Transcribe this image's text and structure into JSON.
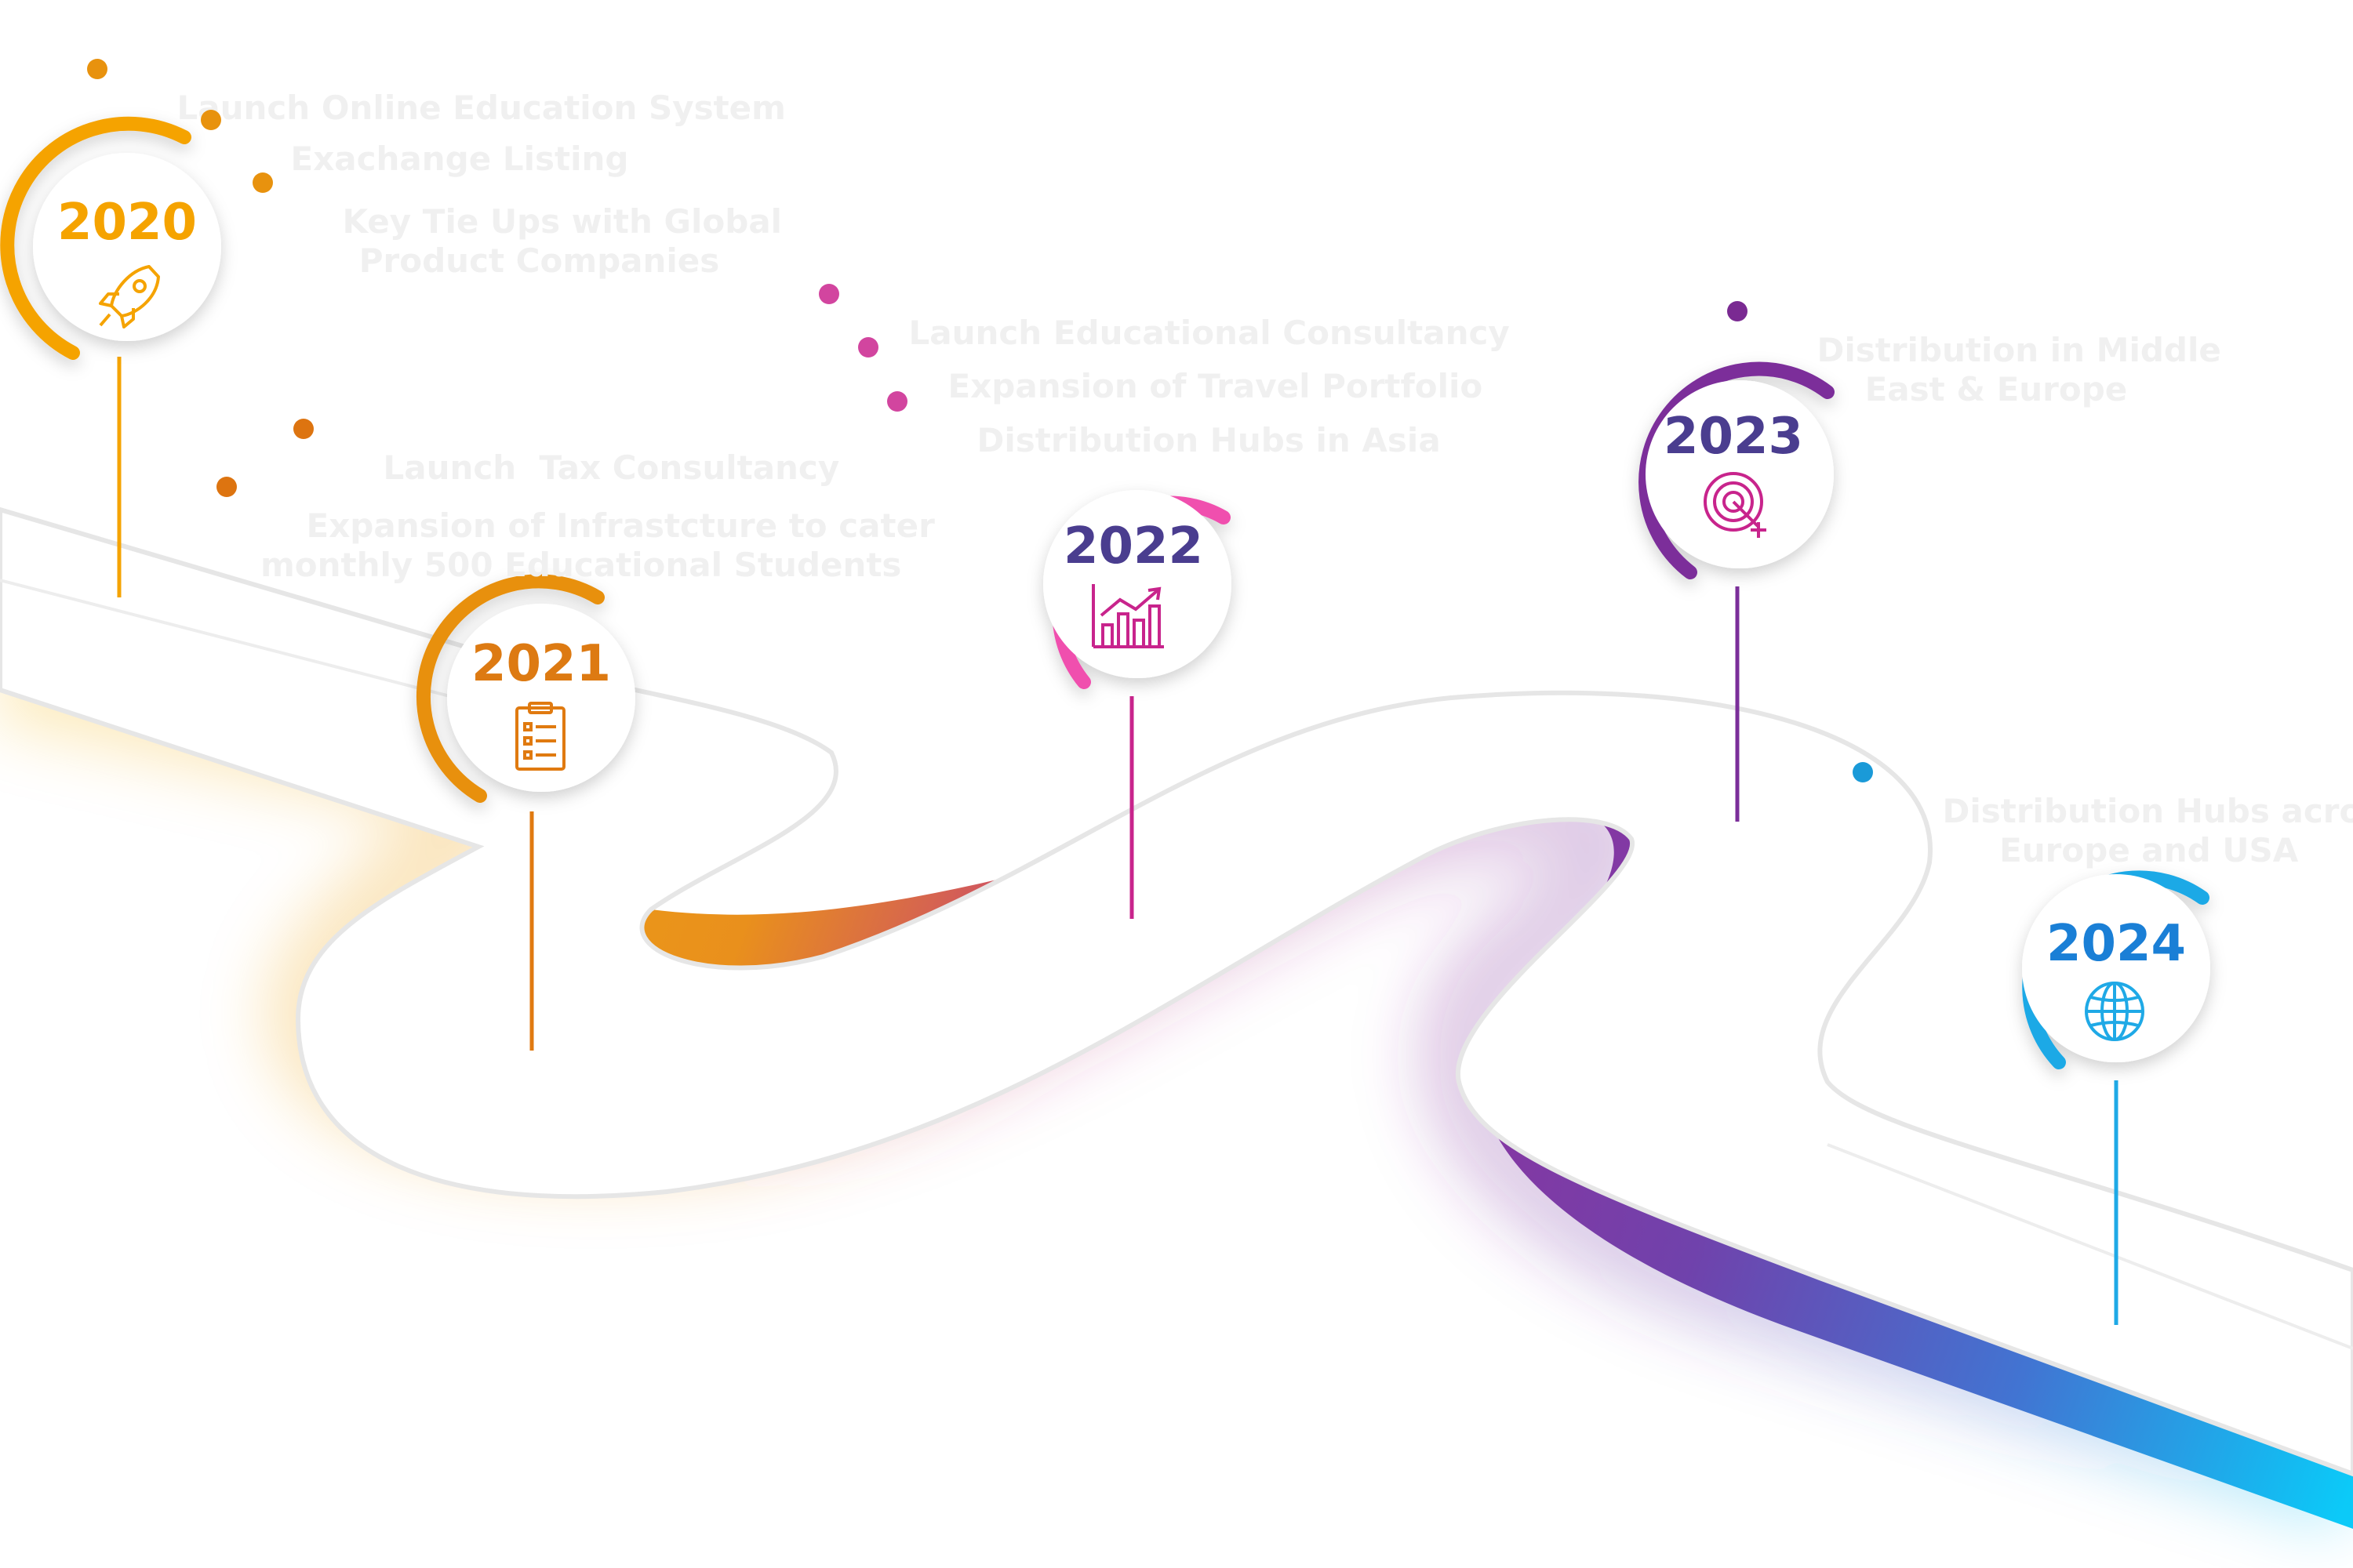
{
  "milestones": [
    {
      "year": "2020",
      "color": "#f5a300",
      "icon": "rocket-icon",
      "notes": [
        "Launch Online Education System",
        "Exachange Listing",
        "Key Tie Ups with Global\nProduct Companies"
      ]
    },
    {
      "year": "2021",
      "color": "#e07a10",
      "icon": "clipboard-checklist-icon",
      "notes": [
        "Launch  Tax Consultancy",
        "Expansion of Infrastcture to cater\nmonthly 500 Educational Students"
      ]
    },
    {
      "year": "2022",
      "color": "#e8479e",
      "icon": "growth-chart-icon",
      "notes": [
        "Launch Educational Consultancy",
        "Expansion of Travel Portfolio",
        "Distribution Hubs in Asia"
      ]
    },
    {
      "year": "2023",
      "color": "#7b2f9a",
      "icon": "target-icon",
      "notes": [
        "Distribution in Middle\nEast & Europe"
      ]
    },
    {
      "year": "2024",
      "color": "#1fa9e6",
      "icon": "globe-icon",
      "notes": [
        "Distribution Hubs across\nEurope and USA"
      ]
    }
  ],
  "colors": {
    "year_text_2020": "#f5a300",
    "year_text_2021": "#dd7a12",
    "year_text_2022": "#4a3d8f",
    "year_text_2023": "#4a3d8f",
    "year_text_2024": "#1a7fd6"
  }
}
